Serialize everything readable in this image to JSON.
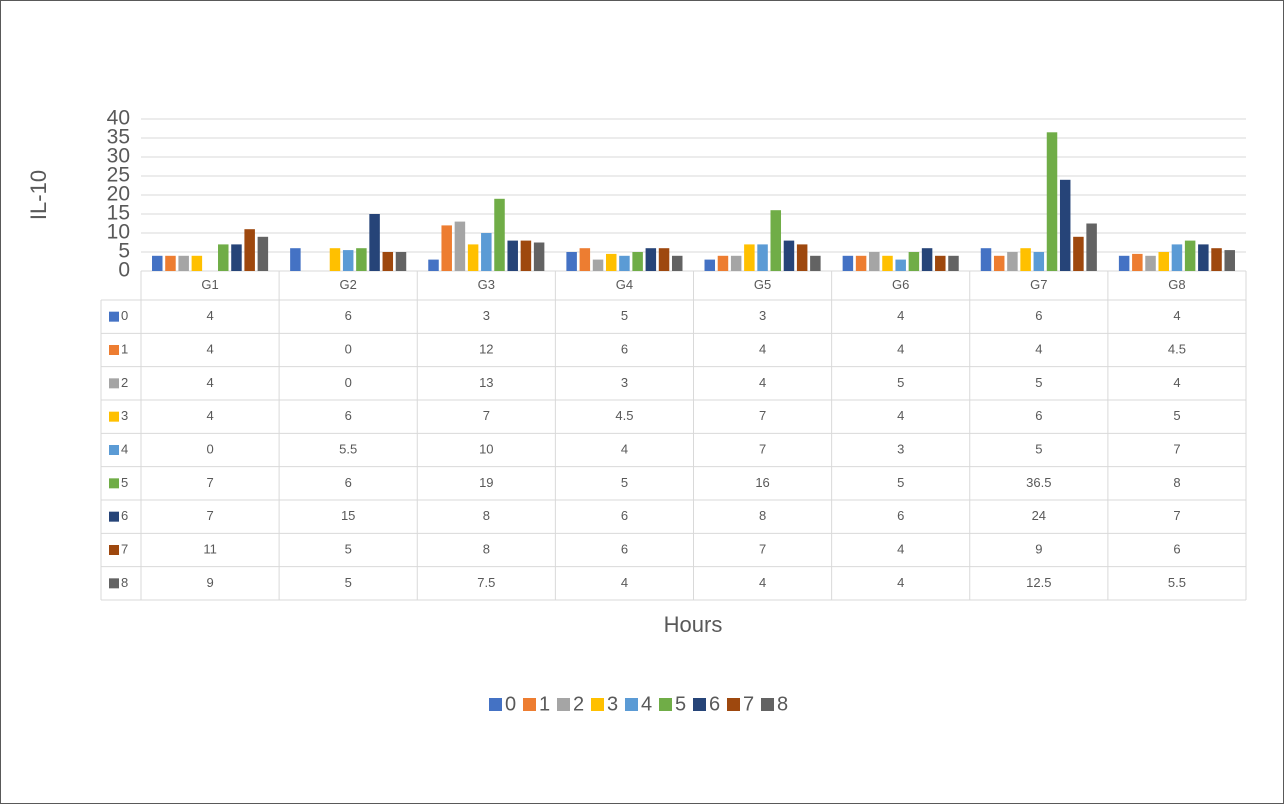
{
  "chart_data": {
    "type": "bar",
    "y_label": "IL-10",
    "x_label": "Hours",
    "categories": [
      "G1",
      "G2",
      "G3",
      "G4",
      "G5",
      "G6",
      "G7",
      "G8"
    ],
    "series": [
      {
        "name": "0",
        "color": "#4472c4",
        "values": [
          4,
          6,
          3,
          5,
          3,
          4,
          6,
          4
        ]
      },
      {
        "name": "1",
        "color": "#ed7d31",
        "values": [
          4,
          0,
          12,
          6,
          4,
          4,
          4,
          4.5
        ]
      },
      {
        "name": "2",
        "color": "#a5a5a5",
        "values": [
          4,
          0,
          13,
          3,
          4,
          5,
          5,
          4
        ]
      },
      {
        "name": "3",
        "color": "#ffc000",
        "values": [
          4,
          6,
          7,
          4.5,
          7,
          4,
          6,
          5
        ]
      },
      {
        "name": "4",
        "color": "#5b9bd5",
        "values": [
          0,
          5.5,
          10,
          4,
          7,
          3,
          5,
          7
        ]
      },
      {
        "name": "5",
        "color": "#70ad47",
        "values": [
          7,
          6,
          19,
          5,
          16,
          5,
          36.5,
          8
        ]
      },
      {
        "name": "6",
        "color": "#264478",
        "values": [
          7,
          15,
          8,
          6,
          8,
          6,
          24,
          7
        ]
      },
      {
        "name": "7",
        "color": "#9e480e",
        "values": [
          11,
          5,
          8,
          6,
          7,
          4,
          9,
          6
        ]
      },
      {
        "name": "8",
        "color": "#636363",
        "values": [
          9,
          5,
          7.5,
          4,
          4,
          4,
          12.5,
          5.5
        ]
      }
    ],
    "ylim": [
      0,
      40
    ],
    "yticks": [
      0,
      5,
      10,
      15,
      20,
      25,
      30,
      35,
      40
    ],
    "grid": true,
    "legend": "bottom"
  }
}
